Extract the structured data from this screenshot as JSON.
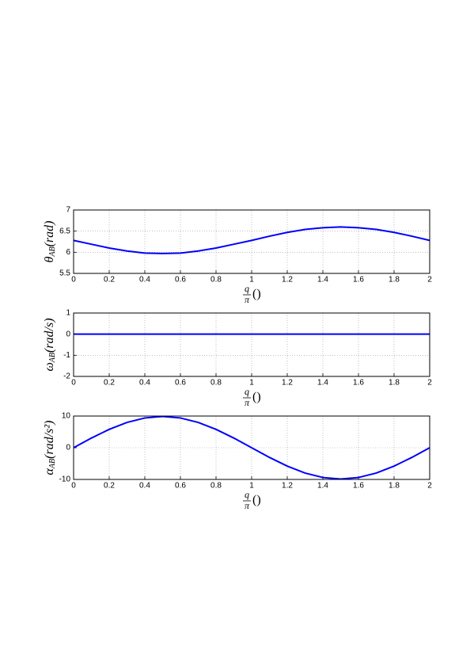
{
  "chart_data": [
    {
      "type": "line",
      "ylabel": {
        "symbol": "θ",
        "subscript": "AB",
        "unit": "(rad)"
      },
      "xlabel": {
        "numerator": "q",
        "denominator": "π",
        "suffix": "()"
      },
      "x": [
        0,
        0.1,
        0.2,
        0.3,
        0.4,
        0.5,
        0.6,
        0.7,
        0.8,
        0.9,
        1,
        1.1,
        1.2,
        1.3,
        1.4,
        1.5,
        1.6,
        1.7,
        1.8,
        1.9,
        2
      ],
      "series": [
        {
          "color": "#0000ff",
          "values": [
            6.28,
            6.19,
            6.1,
            6.03,
            5.98,
            5.97,
            5.98,
            6.03,
            6.1,
            6.19,
            6.28,
            6.38,
            6.47,
            6.54,
            6.58,
            6.6,
            6.58,
            6.54,
            6.47,
            6.38,
            6.28
          ]
        }
      ],
      "xlim": [
        0,
        2
      ],
      "xticks": [
        0,
        0.2,
        0.4,
        0.6,
        0.8,
        1,
        1.2,
        1.4,
        1.6,
        1.8,
        2
      ],
      "ylim": [
        5.5,
        7
      ],
      "yticks": [
        5.5,
        6,
        6.5,
        7
      ],
      "grid": true
    },
    {
      "type": "line",
      "ylabel": {
        "symbol": "ω",
        "subscript": "AB",
        "unit": "(rad/s)"
      },
      "xlabel": {
        "numerator": "q",
        "denominator": "π",
        "suffix": "()"
      },
      "x": [
        0,
        0.1,
        0.2,
        0.3,
        0.4,
        0.5,
        0.6,
        0.7,
        0.8,
        0.9,
        1,
        1.1,
        1.2,
        1.3,
        1.4,
        1.5,
        1.6,
        1.7,
        1.8,
        1.9,
        2
      ],
      "series": [
        {
          "color": "#0000ff",
          "values": [
            0,
            0,
            0,
            0,
            0,
            0,
            0,
            0,
            0,
            0,
            0,
            0,
            0,
            0,
            0,
            0,
            0,
            0,
            0,
            0,
            0
          ]
        }
      ],
      "xlim": [
        0,
        2
      ],
      "xticks": [
        0,
        0.2,
        0.4,
        0.6,
        0.8,
        1,
        1.2,
        1.4,
        1.6,
        1.8,
        2
      ],
      "ylim": [
        -2,
        1
      ],
      "yticks": [
        -2,
        -1,
        0,
        1
      ],
      "grid": true
    },
    {
      "type": "line",
      "ylabel": {
        "symbol": "α",
        "subscript": "AB",
        "unit": "(rad/s²)"
      },
      "xlabel": {
        "numerator": "q",
        "denominator": "π",
        "suffix": "()"
      },
      "x": [
        0,
        0.1,
        0.2,
        0.3,
        0.4,
        0.5,
        0.6,
        0.7,
        0.8,
        0.9,
        1,
        1.1,
        1.2,
        1.3,
        1.4,
        1.5,
        1.6,
        1.7,
        1.8,
        1.9,
        2
      ],
      "series": [
        {
          "color": "#0000ff",
          "values": [
            0,
            3.05,
            5.8,
            7.99,
            9.39,
            9.87,
            9.39,
            7.99,
            5.8,
            3.05,
            0,
            -3.05,
            -5.8,
            -7.99,
            -9.39,
            -9.87,
            -9.39,
            -7.99,
            -5.8,
            -3.05,
            0
          ]
        }
      ],
      "xlim": [
        0,
        2
      ],
      "xticks": [
        0,
        0.2,
        0.4,
        0.6,
        0.8,
        1,
        1.2,
        1.4,
        1.6,
        1.8,
        2
      ],
      "ylim": [
        -10,
        10
      ],
      "yticks": [
        -10,
        0,
        10
      ],
      "grid": true
    }
  ]
}
